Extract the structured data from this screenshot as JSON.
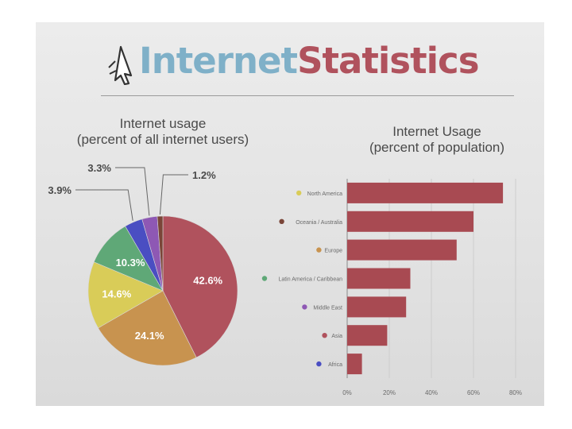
{
  "header": {
    "title_part1": "Internet",
    "title_part2": "Statistics",
    "logo_icon": "cursor-arrow-icon"
  },
  "chart_data": [
    {
      "type": "pie",
      "title": "Internet usage\n(percent of all internet users)",
      "slices": [
        {
          "label": "42.6%",
          "value": 42.6,
          "color": "#b0525d"
        },
        {
          "label": "24.1%",
          "value": 24.1,
          "color": "#c8934f"
        },
        {
          "label": "14.6%",
          "value": 14.6,
          "color": "#d9cc58"
        },
        {
          "label": "10.3%",
          "value": 10.3,
          "color": "#5fa877"
        },
        {
          "label": "3.9%",
          "value": 3.9,
          "color": "#4a4ec2"
        },
        {
          "label": "3.3%",
          "value": 3.3,
          "color": "#8e58b4"
        },
        {
          "label": "1.2%",
          "value": 1.2,
          "color": "#7a4538"
        }
      ]
    },
    {
      "type": "bar",
      "orientation": "horizontal",
      "title": "Internet Usage\n(percent of population)",
      "categories": [
        "North America",
        "Oceania / Australia",
        "Europe",
        "Latin America / Caribbean",
        "Middle East",
        "Asia",
        "Africa"
      ],
      "category_colors": [
        "#d9cc58",
        "#7a4538",
        "#c8934f",
        "#5fa877",
        "#8e58b4",
        "#b0525d",
        "#4a4ec2"
      ],
      "values": [
        74,
        60,
        52,
        30,
        28,
        19,
        7
      ],
      "bar_color": "#a84a52",
      "xlim": [
        0,
        80
      ],
      "ticks": [
        "0%",
        "20%",
        "40%",
        "60%",
        "80%"
      ],
      "grid": true
    }
  ]
}
